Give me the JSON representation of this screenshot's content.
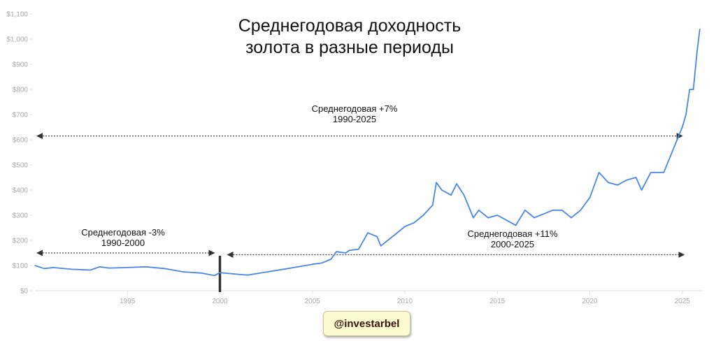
{
  "chart_data": {
    "type": "line",
    "title": "Среднегодовая доходность\nзолота в разные периоды",
    "title_lines": [
      "Среднегодовая доходность",
      "золота в разные периоды"
    ],
    "xlabel": "",
    "ylabel": "",
    "xlim": [
      1990,
      2026
    ],
    "ylim": [
      0,
      1100
    ],
    "x_ticks": [
      "1995",
      "2000",
      "2005",
      "2010",
      "2015",
      "2020",
      "2025"
    ],
    "y_ticks": [
      "$0",
      "$100",
      "$200",
      "$300",
      "$400",
      "$500",
      "$600",
      "$700",
      "$800",
      "$900",
      "$1,000",
      "$1,100"
    ],
    "grid": false,
    "line_color": "#4a86e8",
    "series": [
      {
        "x": [
          1990,
          1990.5,
          1991,
          1992,
          1993,
          1993.5,
          1994,
          1995,
          1996,
          1997,
          1998,
          1999,
          1999.7,
          2000,
          2001,
          2001.5,
          2002,
          2003,
          2004,
          2005,
          2005.5,
          2006,
          2006.3,
          2006.8,
          2007,
          2007.5,
          2008,
          2008.5,
          2008.7,
          2009.5,
          2010,
          2010.5,
          2011,
          2011.5,
          2011.7,
          2012,
          2012.5,
          2012.8,
          2013.2,
          2013.7,
          2014,
          2014.5,
          2015,
          2015.5,
          2016,
          2016.5,
          2017,
          2017.5,
          2018,
          2018.5,
          2019,
          2019.5,
          2020,
          2020.5,
          2021,
          2021.5,
          2022,
          2022.5,
          2022.8,
          2023.3,
          2024,
          2024.5,
          2025,
          2025.2,
          2025.4,
          2025.6,
          2025.8,
          2025.95
        ],
        "values": [
          100,
          88,
          92,
          85,
          82,
          95,
          90,
          92,
          95,
          88,
          75,
          70,
          60,
          72,
          65,
          62,
          68,
          80,
          92,
          105,
          110,
          125,
          155,
          150,
          160,
          165,
          230,
          215,
          178,
          225,
          255,
          270,
          300,
          340,
          430,
          400,
          380,
          425,
          380,
          290,
          320,
          290,
          300,
          280,
          260,
          320,
          290,
          305,
          320,
          320,
          290,
          320,
          370,
          470,
          430,
          420,
          440,
          450,
          400,
          470,
          470,
          560,
          650,
          700,
          800,
          800,
          950,
          1040
        ]
      }
    ],
    "annotations": [
      {
        "lines": [
          "Среднегодовая +7%",
          "1990-2025"
        ],
        "from": 1990,
        "to": 2025,
        "level": 615
      },
      {
        "lines": [
          "Среднегодовая -3%",
          "1990-2000"
        ],
        "from": 1990,
        "to": 1999.7,
        "level": 150
      },
      {
        "lines": [
          "Среднегодовая +11%",
          "2000-2025"
        ],
        "from": 2000.3,
        "to": 2025.1,
        "level": 143
      }
    ],
    "marker_year": 2000
  },
  "watermark": "@investarbel"
}
